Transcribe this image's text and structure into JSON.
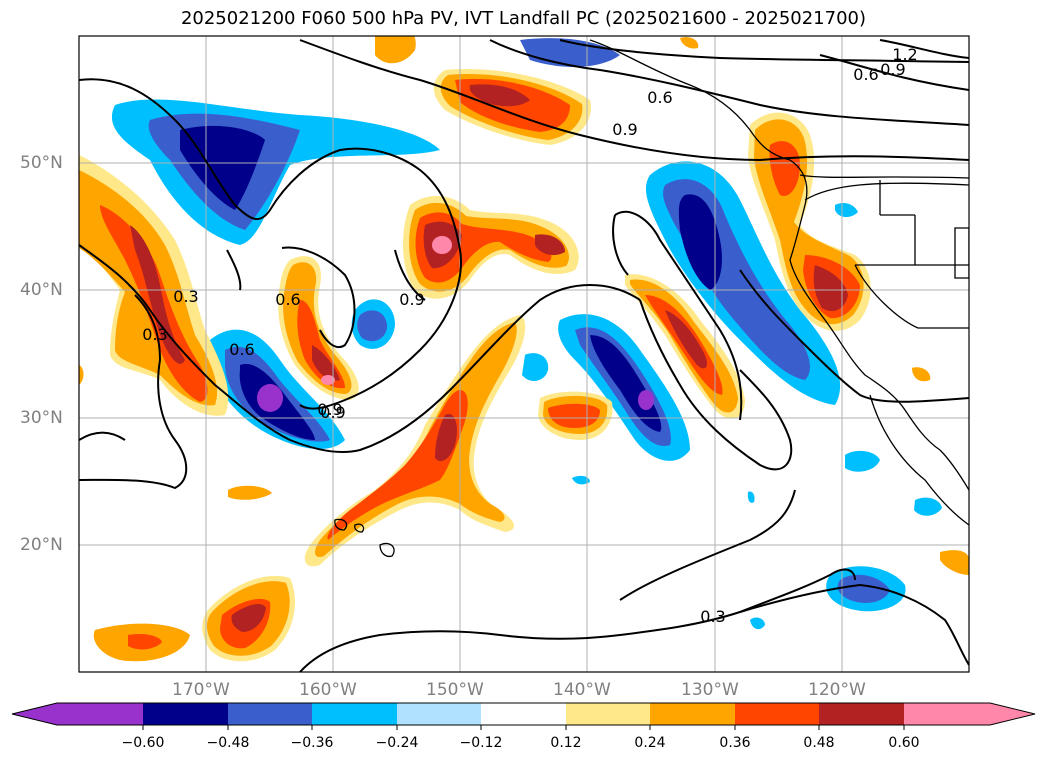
{
  "title": "2025021200 F060 500 hPa PV, IVT Landfall PC (2025021600 - 2025021700)",
  "lat_labels": [
    "50°N",
    "40°N",
    "30°N",
    "20°N"
  ],
  "lon_labels": [
    "170°W",
    "160°W",
    "150°W",
    "140°W",
    "130°W",
    "120°W"
  ],
  "contour_labels": [
    "1.2",
    "0.9",
    "0.6",
    "0.6",
    "0.9",
    "0.9",
    "0.9",
    "0.6",
    "0.3",
    "0.3",
    "0.6",
    "0.9",
    "0.3"
  ],
  "colorbar": {
    "tick_labels": [
      "−0.60",
      "−0.48",
      "−0.36",
      "−0.24",
      "−0.12",
      "0.12",
      "0.24",
      "0.36",
      "0.48",
      "0.60"
    ],
    "colors": [
      "#9932cc",
      "#00008b",
      "#3a5fcd",
      "#00bfff",
      "#b0e2ff",
      "#ffffff",
      "#ffe88a",
      "#ffa500",
      "#ff4500",
      "#b22222",
      "#ff88aa"
    ]
  }
}
